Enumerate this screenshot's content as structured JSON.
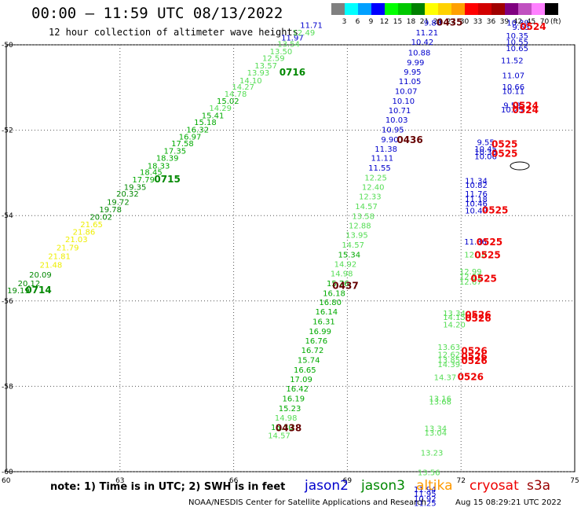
{
  "header": {
    "title": "00:00 — 11:59 UTC 08/13/2022",
    "subtitle": "12 hour collection of altimeter wave heights"
  },
  "color_scale": {
    "unit": "(ft)",
    "items": [
      {
        "label": "3",
        "color": "#808080"
      },
      {
        "label": "6",
        "color": "#00ffff"
      },
      {
        "label": "9",
        "color": "#00a0ff"
      },
      {
        "label": "12",
        "color": "#0000ff"
      },
      {
        "label": "15",
        "color": "#00ff00"
      },
      {
        "label": "18",
        "color": "#00c800"
      },
      {
        "label": "21",
        "color": "#008000"
      },
      {
        "label": "24",
        "color": "#ffff00"
      },
      {
        "label": "27",
        "color": "#ffd200"
      },
      {
        "label": "30",
        "color": "#ffa000"
      },
      {
        "label": "33",
        "color": "#ff0000"
      },
      {
        "label": "36",
        "color": "#d20000"
      },
      {
        "label": "39",
        "color": "#a00000"
      },
      {
        "label": "42",
        "color": "#800080"
      },
      {
        "label": "45",
        "color": "#c050c0"
      },
      {
        "label": "70",
        "color": "#ff80ff"
      },
      {
        "label": "",
        "color": "#000000"
      }
    ]
  },
  "map": {
    "x_range": [
      60,
      75
    ],
    "y_range": [
      -60,
      -50
    ],
    "x_ticks": [
      "60",
      "63",
      "66",
      "69",
      "72",
      "75"
    ],
    "y_ticks": [
      "-50",
      "-52",
      "-54",
      "-56",
      "-58",
      "-60"
    ],
    "swh_colors": {
      "9": "#0000cc",
      "12": "#55dd55",
      "15": "#00aa00",
      "18": "#008800",
      "21": "#eeee00"
    },
    "time_color": {
      "jason3": "#008800",
      "jason2": "#660000",
      "s3a": "#ee0000"
    },
    "swh_labels": [
      {
        "v": "19.19",
        "lon": 60.32,
        "lat": -55.82,
        "c": "18"
      },
      {
        "v": "20.12",
        "lon": 60.6,
        "lat": -55.65,
        "c": "18"
      },
      {
        "v": "20.09",
        "lon": 60.9,
        "lat": -55.45,
        "c": "18"
      },
      {
        "v": "21.48",
        "lon": 61.18,
        "lat": -55.22,
        "c": "21"
      },
      {
        "v": "21.81",
        "lon": 61.4,
        "lat": -55.02,
        "c": "21"
      },
      {
        "v": "21.79",
        "lon": 61.62,
        "lat": -54.82,
        "c": "21"
      },
      {
        "v": "21.03",
        "lon": 61.85,
        "lat": -54.62,
        "c": "21"
      },
      {
        "v": "21.86",
        "lon": 62.05,
        "lat": -54.45,
        "c": "21"
      },
      {
        "v": "21.65",
        "lon": 62.25,
        "lat": -54.27,
        "c": "21"
      },
      {
        "v": "20.02",
        "lon": 62.5,
        "lat": -54.1,
        "c": "18"
      },
      {
        "v": "19.78",
        "lon": 62.75,
        "lat": -53.92,
        "c": "18"
      },
      {
        "v": "19.72",
        "lon": 62.95,
        "lat": -53.75,
        "c": "18"
      },
      {
        "v": "20.32",
        "lon": 63.2,
        "lat": -53.55,
        "c": "18"
      },
      {
        "v": "19.35",
        "lon": 63.4,
        "lat": -53.4,
        "c": "18"
      },
      {
        "v": "17.79",
        "lon": 63.62,
        "lat": -53.22,
        "c": "15"
      },
      {
        "v": "18.45",
        "lon": 63.82,
        "lat": -53.05,
        "c": "15"
      },
      {
        "v": "18.33",
        "lon": 64.02,
        "lat": -52.9,
        "c": "15"
      },
      {
        "v": "18.39",
        "lon": 64.25,
        "lat": -52.72,
        "c": "15"
      },
      {
        "v": "17.35",
        "lon": 64.45,
        "lat": -52.55,
        "c": "15"
      },
      {
        "v": "17.58",
        "lon": 64.65,
        "lat": -52.38,
        "c": "15"
      },
      {
        "v": "16.97",
        "lon": 64.85,
        "lat": -52.22,
        "c": "15"
      },
      {
        "v": "16.32",
        "lon": 65.05,
        "lat": -52.05,
        "c": "15"
      },
      {
        "v": "15.18",
        "lon": 65.25,
        "lat": -51.88,
        "c": "15"
      },
      {
        "v": "15.41",
        "lon": 65.45,
        "lat": -51.72,
        "c": "15"
      },
      {
        "v": "14.29",
        "lon": 65.65,
        "lat": -51.55,
        "c": "12"
      },
      {
        "v": "15.02",
        "lon": 65.85,
        "lat": -51.38,
        "c": "15"
      },
      {
        "v": "14.78",
        "lon": 66.05,
        "lat": -51.22,
        "c": "12"
      },
      {
        "v": "14.27",
        "lon": 66.25,
        "lat": -51.05,
        "c": "12"
      },
      {
        "v": "14.10",
        "lon": 66.45,
        "lat": -50.9,
        "c": "12"
      },
      {
        "v": "13.93",
        "lon": 66.65,
        "lat": -50.72,
        "c": "12"
      },
      {
        "v": "13.57",
        "lon": 66.85,
        "lat": -50.55,
        "c": "12"
      },
      {
        "v": "12.59",
        "lon": 67.05,
        "lat": -50.38,
        "c": "12"
      },
      {
        "v": "13.50",
        "lon": 67.25,
        "lat": -50.22,
        "c": "12"
      },
      {
        "v": "13.54",
        "lon": 67.45,
        "lat": -50.05,
        "c": "12"
      },
      {
        "v": "11.97",
        "lon": 67.55,
        "lat": -49.9,
        "c": "9"
      },
      {
        "v": "12.49",
        "lon": 67.85,
        "lat": -49.78,
        "c": "12"
      },
      {
        "v": "11.71",
        "lon": 68.05,
        "lat": -49.6,
        "c": "9"
      },
      {
        "v": "9.80",
        "lon": 71.25,
        "lat": -49.55,
        "c": "9"
      },
      {
        "v": "11.21",
        "lon": 71.1,
        "lat": -49.78,
        "c": "9"
      },
      {
        "v": "10.42",
        "lon": 70.98,
        "lat": -50.0,
        "c": "9"
      },
      {
        "v": "10.88",
        "lon": 70.9,
        "lat": -50.25,
        "c": "9"
      },
      {
        "v": "9.99",
        "lon": 70.8,
        "lat": -50.48,
        "c": "9"
      },
      {
        "v": "9.95",
        "lon": 70.72,
        "lat": -50.7,
        "c": "9"
      },
      {
        "v": "11.05",
        "lon": 70.65,
        "lat": -50.92,
        "c": "9"
      },
      {
        "v": "10.07",
        "lon": 70.55,
        "lat": -51.15,
        "c": "9"
      },
      {
        "v": "10.10",
        "lon": 70.48,
        "lat": -51.38,
        "c": "9"
      },
      {
        "v": "10.71",
        "lon": 70.38,
        "lat": -51.6,
        "c": "9"
      },
      {
        "v": "10.03",
        "lon": 70.3,
        "lat": -51.82,
        "c": "9"
      },
      {
        "v": "10.95",
        "lon": 70.2,
        "lat": -52.05,
        "c": "9"
      },
      {
        "v": "9.90",
        "lon": 70.12,
        "lat": -52.28,
        "c": "9"
      },
      {
        "v": "11.38",
        "lon": 70.02,
        "lat": -52.5,
        "c": "9"
      },
      {
        "v": "11.11",
        "lon": 69.92,
        "lat": -52.72,
        "c": "9"
      },
      {
        "v": "11.55",
        "lon": 69.85,
        "lat": -52.95,
        "c": "9"
      },
      {
        "v": "12.25",
        "lon": 69.75,
        "lat": -53.18,
        "c": "12"
      },
      {
        "v": "12.40",
        "lon": 69.68,
        "lat": -53.4,
        "c": "12"
      },
      {
        "v": "12.33",
        "lon": 69.6,
        "lat": -53.62,
        "c": "12"
      },
      {
        "v": "14.57",
        "lon": 69.5,
        "lat": -53.85,
        "c": "12"
      },
      {
        "v": "13.58",
        "lon": 69.42,
        "lat": -54.08,
        "c": "12"
      },
      {
        "v": "12.88",
        "lon": 69.33,
        "lat": -54.3,
        "c": "12"
      },
      {
        "v": "13.95",
        "lon": 69.25,
        "lat": -54.52,
        "c": "12"
      },
      {
        "v": "14.57",
        "lon": 69.15,
        "lat": -54.75,
        "c": "12"
      },
      {
        "v": "15.34",
        "lon": 69.05,
        "lat": -54.98,
        "c": "15"
      },
      {
        "v": "14.92",
        "lon": 68.95,
        "lat": -55.2,
        "c": "12"
      },
      {
        "v": "14.98",
        "lon": 68.85,
        "lat": -55.42,
        "c": "12"
      },
      {
        "v": "15.76",
        "lon": 68.75,
        "lat": -55.65,
        "c": "15"
      },
      {
        "v": "16.18",
        "lon": 68.65,
        "lat": -55.88,
        "c": "15"
      },
      {
        "v": "16.80",
        "lon": 68.55,
        "lat": -56.1,
        "c": "15"
      },
      {
        "v": "16.14",
        "lon": 68.45,
        "lat": -56.32,
        "c": "15"
      },
      {
        "v": "16.31",
        "lon": 68.38,
        "lat": -56.55,
        "c": "15"
      },
      {
        "v": "16.99",
        "lon": 68.28,
        "lat": -56.78,
        "c": "15"
      },
      {
        "v": "16.76",
        "lon": 68.18,
        "lat": -57.0,
        "c": "15"
      },
      {
        "v": "16.72",
        "lon": 68.08,
        "lat": -57.22,
        "c": "15"
      },
      {
        "v": "15.74",
        "lon": 67.98,
        "lat": -57.45,
        "c": "15"
      },
      {
        "v": "16.65",
        "lon": 67.88,
        "lat": -57.68,
        "c": "15"
      },
      {
        "v": "17.09",
        "lon": 67.78,
        "lat": -57.9,
        "c": "15"
      },
      {
        "v": "16.42",
        "lon": 67.68,
        "lat": -58.12,
        "c": "15"
      },
      {
        "v": "16.19",
        "lon": 67.58,
        "lat": -58.35,
        "c": "15"
      },
      {
        "v": "15.23",
        "lon": 67.48,
        "lat": -58.58,
        "c": "15"
      },
      {
        "v": "14.98",
        "lon": 67.38,
        "lat": -58.8,
        "c": "12"
      },
      {
        "v": "15.30",
        "lon": 67.28,
        "lat": -59.02,
        "c": "15"
      },
      {
        "v": "14.57",
        "lon": 67.2,
        "lat": -59.22,
        "c": "12"
      },
      {
        "v": "10.39",
        "lon": 73.5,
        "lat": -49.55,
        "c": "9"
      },
      {
        "v": "9.63",
        "lon": 73.58,
        "lat": -49.65,
        "c": "9"
      },
      {
        "v": "10.35",
        "lon": 73.48,
        "lat": -49.85,
        "c": "9"
      },
      {
        "v": "10.55",
        "lon": 73.48,
        "lat": -50.0,
        "c": "9"
      },
      {
        "v": "10.65",
        "lon": 73.48,
        "lat": -50.15,
        "c": "9"
      },
      {
        "v": "11.52",
        "lon": 73.35,
        "lat": -50.43,
        "c": "9"
      },
      {
        "v": "11.07",
        "lon": 73.38,
        "lat": -50.78,
        "c": "9"
      },
      {
        "v": "10.66",
        "lon": 73.38,
        "lat": -51.05,
        "c": "9"
      },
      {
        "v": "10.11",
        "lon": 73.38,
        "lat": -51.15,
        "c": "9"
      },
      {
        "v": "9.53",
        "lon": 73.35,
        "lat": -51.48,
        "c": "9"
      },
      {
        "v": "10.25",
        "lon": 73.35,
        "lat": -51.58,
        "c": "9"
      },
      {
        "v": "9.55",
        "lon": 72.65,
        "lat": -52.35,
        "c": "9"
      },
      {
        "v": "10.45",
        "lon": 72.65,
        "lat": -52.5,
        "c": "9"
      },
      {
        "v": "10.38",
        "lon": 72.65,
        "lat": -52.58,
        "c": "9"
      },
      {
        "v": "10.06",
        "lon": 72.65,
        "lat": -52.68,
        "c": "9"
      },
      {
        "v": "11.34",
        "lon": 72.4,
        "lat": -53.25,
        "c": "9"
      },
      {
        "v": "10.82",
        "lon": 72.4,
        "lat": -53.35,
        "c": "9"
      },
      {
        "v": "11.76",
        "lon": 72.4,
        "lat": -53.55,
        "c": "9"
      },
      {
        "v": "11.18",
        "lon": 72.4,
        "lat": -53.68,
        "c": "9"
      },
      {
        "v": "10.46",
        "lon": 72.4,
        "lat": -53.78,
        "c": "9"
      },
      {
        "v": "10.49",
        "lon": 72.4,
        "lat": -53.95,
        "c": "9"
      },
      {
        "v": "11.36",
        "lon": 72.38,
        "lat": -54.68,
        "c": "9"
      },
      {
        "v": "12.18",
        "lon": 72.38,
        "lat": -54.98,
        "c": "12"
      },
      {
        "v": "12.99",
        "lon": 72.25,
        "lat": -55.38,
        "c": "12"
      },
      {
        "v": "12.97",
        "lon": 72.25,
        "lat": -55.5,
        "c": "12"
      },
      {
        "v": "12.67",
        "lon": 72.25,
        "lat": -55.62,
        "c": "12"
      },
      {
        "v": "13.34",
        "lon": 71.82,
        "lat": -56.35,
        "c": "12"
      },
      {
        "v": "14.15",
        "lon": 71.82,
        "lat": -56.45,
        "c": "12"
      },
      {
        "v": "14.20",
        "lon": 71.82,
        "lat": -56.62,
        "c": "12"
      },
      {
        "v": "13.63",
        "lon": 71.68,
        "lat": -57.15,
        "c": "12"
      },
      {
        "v": "12.62",
        "lon": 71.68,
        "lat": -57.32,
        "c": "12"
      },
      {
        "v": "13.85",
        "lon": 71.68,
        "lat": -57.45,
        "c": "12"
      },
      {
        "v": "14.39",
        "lon": 71.68,
        "lat": -57.55,
        "c": "12"
      },
      {
        "v": "14.37",
        "lon": 71.58,
        "lat": -57.85,
        "c": "12"
      },
      {
        "v": "13.16",
        "lon": 71.45,
        "lat": -58.35,
        "c": "12"
      },
      {
        "v": "13.68",
        "lon": 71.45,
        "lat": -58.43,
        "c": "12"
      },
      {
        "v": "13.34",
        "lon": 71.33,
        "lat": -59.05,
        "c": "12"
      },
      {
        "v": "13.04",
        "lon": 71.33,
        "lat": -59.15,
        "c": "12"
      },
      {
        "v": "13.23",
        "lon": 71.23,
        "lat": -59.62,
        "c": "12"
      },
      {
        "v": "13.56",
        "lon": 71.15,
        "lat": -60.08,
        "c": "12"
      },
      {
        "v": "11.94",
        "lon": 71.05,
        "lat": -60.48,
        "c": "9"
      },
      {
        "v": "11.95",
        "lon": 71.05,
        "lat": -60.58,
        "c": "9"
      },
      {
        "v": "10.92",
        "lon": 71.05,
        "lat": -60.7,
        "c": "9"
      },
      {
        "v": "11.25",
        "lon": 71.05,
        "lat": -60.8,
        "c": "9"
      }
    ],
    "time_labels": [
      {
        "v": "0714",
        "lon": 60.85,
        "lat": -55.82,
        "sat": "jason3"
      },
      {
        "v": "0715",
        "lon": 64.25,
        "lat": -53.22,
        "sat": "jason3"
      },
      {
        "v": "0716",
        "lon": 67.55,
        "lat": -50.72,
        "sat": "jason3"
      },
      {
        "v": "0435",
        "lon": 71.7,
        "lat": -49.55,
        "sat": "jason2"
      },
      {
        "v": "0436",
        "lon": 70.65,
        "lat": -52.3,
        "sat": "jason2"
      },
      {
        "v": "0437",
        "lon": 68.95,
        "lat": -55.72,
        "sat": "jason2"
      },
      {
        "v": "0438",
        "lon": 67.45,
        "lat": -59.05,
        "sat": "jason2"
      },
      {
        "v": "0524",
        "lon": 73.9,
        "lat": -49.65,
        "sat": "s3a"
      },
      {
        "v": "0524",
        "lon": 73.7,
        "lat": -51.5,
        "sat": "s3a"
      },
      {
        "v": "0524",
        "lon": 73.7,
        "lat": -51.6,
        "sat": "s3a"
      },
      {
        "v": "0525",
        "lon": 73.15,
        "lat": -52.4,
        "sat": "s3a"
      },
      {
        "v": "0525",
        "lon": 73.15,
        "lat": -52.62,
        "sat": "s3a"
      },
      {
        "v": "0525",
        "lon": 72.9,
        "lat": -53.95,
        "sat": "s3a"
      },
      {
        "v": "0525",
        "lon": 72.75,
        "lat": -54.7,
        "sat": "s3a"
      },
      {
        "v": "0525",
        "lon": 72.7,
        "lat": -55.0,
        "sat": "s3a"
      },
      {
        "v": "0525",
        "lon": 72.6,
        "lat": -55.55,
        "sat": "s3a"
      },
      {
        "v": "0526",
        "lon": 72.45,
        "lat": -56.4,
        "sat": "s3a"
      },
      {
        "v": "0526",
        "lon": 72.45,
        "lat": -56.48,
        "sat": "s3a"
      },
      {
        "v": "0526",
        "lon": 72.35,
        "lat": -57.25,
        "sat": "s3a"
      },
      {
        "v": "0526",
        "lon": 72.35,
        "lat": -57.38,
        "sat": "s3a"
      },
      {
        "v": "0526",
        "lon": 72.35,
        "lat": -57.48,
        "sat": "s3a"
      },
      {
        "v": "0526",
        "lon": 72.25,
        "lat": -57.85,
        "sat": "s3a"
      }
    ]
  },
  "footer": {
    "note": "note: 1) Time is in UTC; 2) SWH is in feet",
    "sats": [
      {
        "label": "jason2",
        "color": "#0000cc"
      },
      {
        "label": "jason3",
        "color": "#008800"
      },
      {
        "label": "altika",
        "color": "#ff9900"
      },
      {
        "label": "cryosat",
        "color": "#ee0000"
      },
      {
        "label": "s3a",
        "color": "#990000"
      }
    ],
    "credit": "NOAA/NESDIS Center for Satellite Applications and Research",
    "stamp": "Aug 15 08:29:21 UTC 2022"
  }
}
